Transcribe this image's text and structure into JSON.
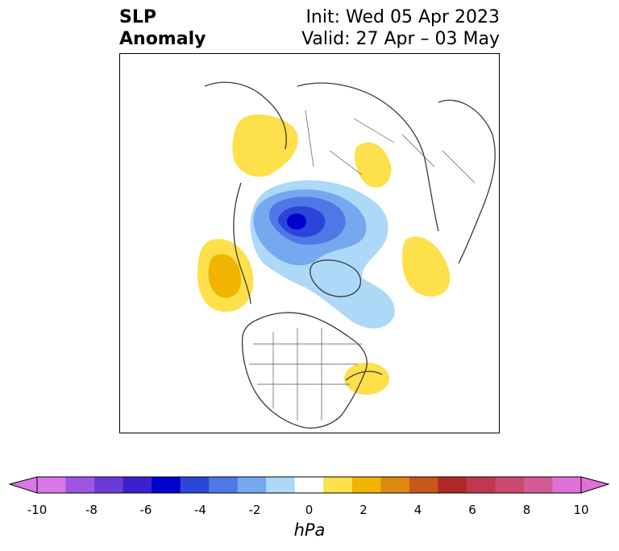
{
  "title": {
    "left_line1": "SLP",
    "left_line2": "Anomaly",
    "right_line1": "Init: Wed 05 Apr 2023",
    "right_line2": "Valid: 27 Apr – 03 May"
  },
  "colorbar": {
    "unit": "hPa",
    "tick_labels": [
      "-10",
      "-8",
      "-6",
      "-4",
      "-2",
      "0",
      "2",
      "4",
      "6",
      "8",
      "10"
    ],
    "levels": [
      -10,
      -9,
      -8,
      -7,
      -6,
      -5,
      -4,
      -3,
      -2,
      -1,
      1,
      2,
      3,
      4,
      5,
      6,
      7,
      8,
      9,
      10
    ],
    "colors": [
      "#d877e8",
      "#9f55e0",
      "#6c3ad8",
      "#3c20d0",
      "#0000cd",
      "#2b45d8",
      "#4f78e6",
      "#76a8f0",
      "#add8f8",
      "#ffffff",
      "#fde04a",
      "#f1b400",
      "#dc8a10",
      "#c85818",
      "#b02828",
      "#c03850",
      "#cc4870",
      "#d25a98",
      "#e070d8"
    ],
    "extend_low_color": "#d877e8",
    "extend_high_color": "#e070d8"
  },
  "anomalies": [
    {
      "name": "arctic-low",
      "sign": "negative",
      "levels": [
        -2,
        -3,
        -4,
        -5,
        -6
      ]
    },
    {
      "name": "canada-arctic-low-extension",
      "sign": "negative",
      "levels": [
        -2
      ]
    },
    {
      "name": "north-pacific-high",
      "sign": "positive",
      "levels": [
        1,
        2
      ]
    },
    {
      "name": "scandinavia-high",
      "sign": "positive",
      "levels": [
        1
      ]
    },
    {
      "name": "west-siberia-high",
      "sign": "positive",
      "levels": [
        1
      ]
    },
    {
      "name": "east-siberia-high",
      "sign": "positive",
      "levels": [
        1
      ]
    },
    {
      "name": "atlantic-high",
      "sign": "positive",
      "levels": [
        1
      ]
    }
  ]
}
